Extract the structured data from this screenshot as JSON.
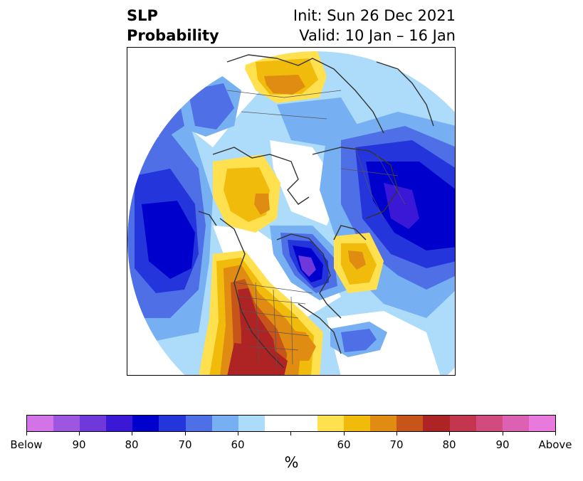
{
  "title": {
    "left_line1": "SLP",
    "left_line2": "Probability",
    "right_line1": "Init: Sun 26 Dec 2021",
    "right_line2": "Valid: 10 Jan – 16 Jan"
  },
  "colorbar": {
    "colors": [
      "#d373e8",
      "#9e56e0",
      "#6e38db",
      "#3b18d6",
      "#0000cc",
      "#2436db",
      "#4f6fe6",
      "#77b0f2",
      "#acdcfa",
      "#ffffff",
      "#ffffff",
      "#ffe04f",
      "#f1bb0b",
      "#e08c12",
      "#c75519",
      "#ae2323",
      "#c4364d",
      "#d24b7e",
      "#dd61b3",
      "#e879dd"
    ],
    "tick_labels": [
      "Below",
      "90",
      "80",
      "70",
      "60",
      "60",
      "70",
      "80",
      "90",
      "Above"
    ],
    "unit": "%"
  },
  "legend_colors": {
    "below_60": "#acdcfa",
    "below_65": "#77b0f2",
    "below_70": "#4f6fe6",
    "below_75": "#2436db",
    "below_80": "#0000cc",
    "below_85": "#3b18d6",
    "below_90": "#6e38db",
    "above_60": "#ffe04f",
    "above_65": "#f1bb0b",
    "above_70": "#e08c12",
    "above_75": "#c75519",
    "above_80": "#ae2323"
  }
}
